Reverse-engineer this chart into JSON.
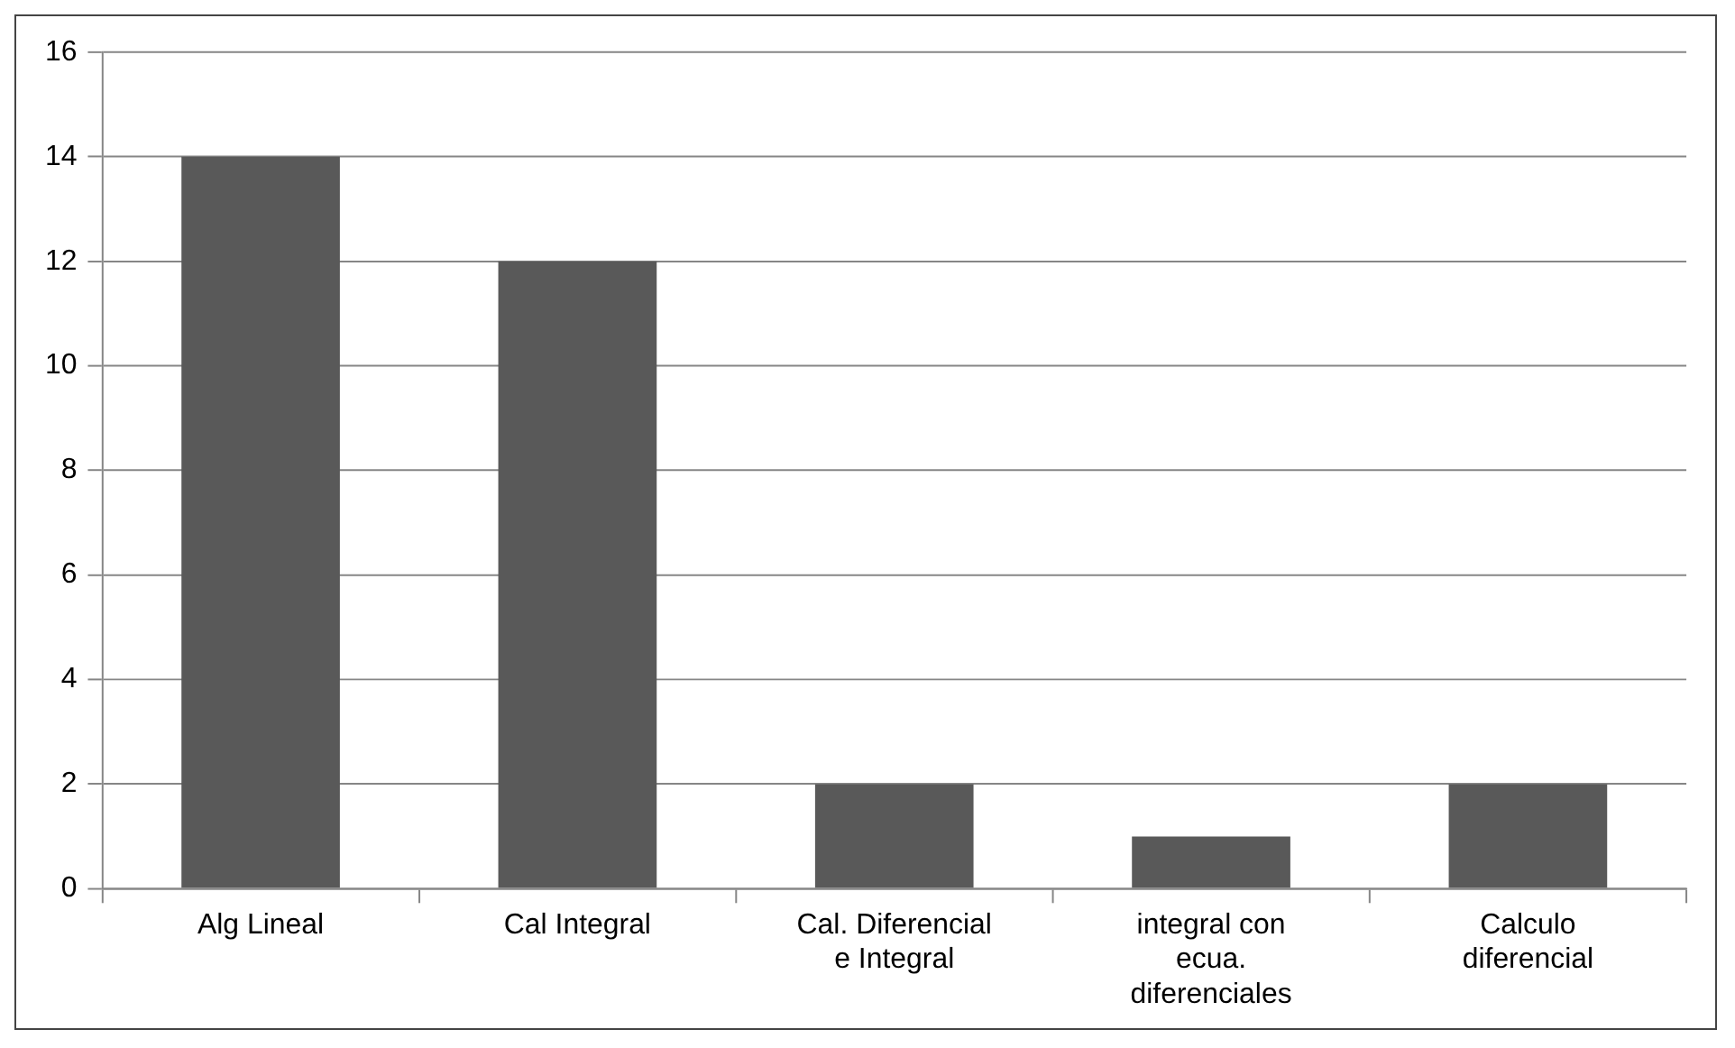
{
  "chart_data": {
    "type": "bar",
    "categories": [
      "Alg Lineal",
      "Cal Integral",
      "Cal. Diferencial e Integral",
      "integral con ecua. diferenciales",
      "Calculo diferencial"
    ],
    "values": [
      14,
      12,
      2,
      1,
      2
    ],
    "color": "#595959",
    "ylim": [
      0,
      16
    ],
    "yticks": [
      0,
      2,
      4,
      6,
      8,
      10,
      12,
      14,
      16
    ],
    "grid": "y",
    "legend": false
  }
}
